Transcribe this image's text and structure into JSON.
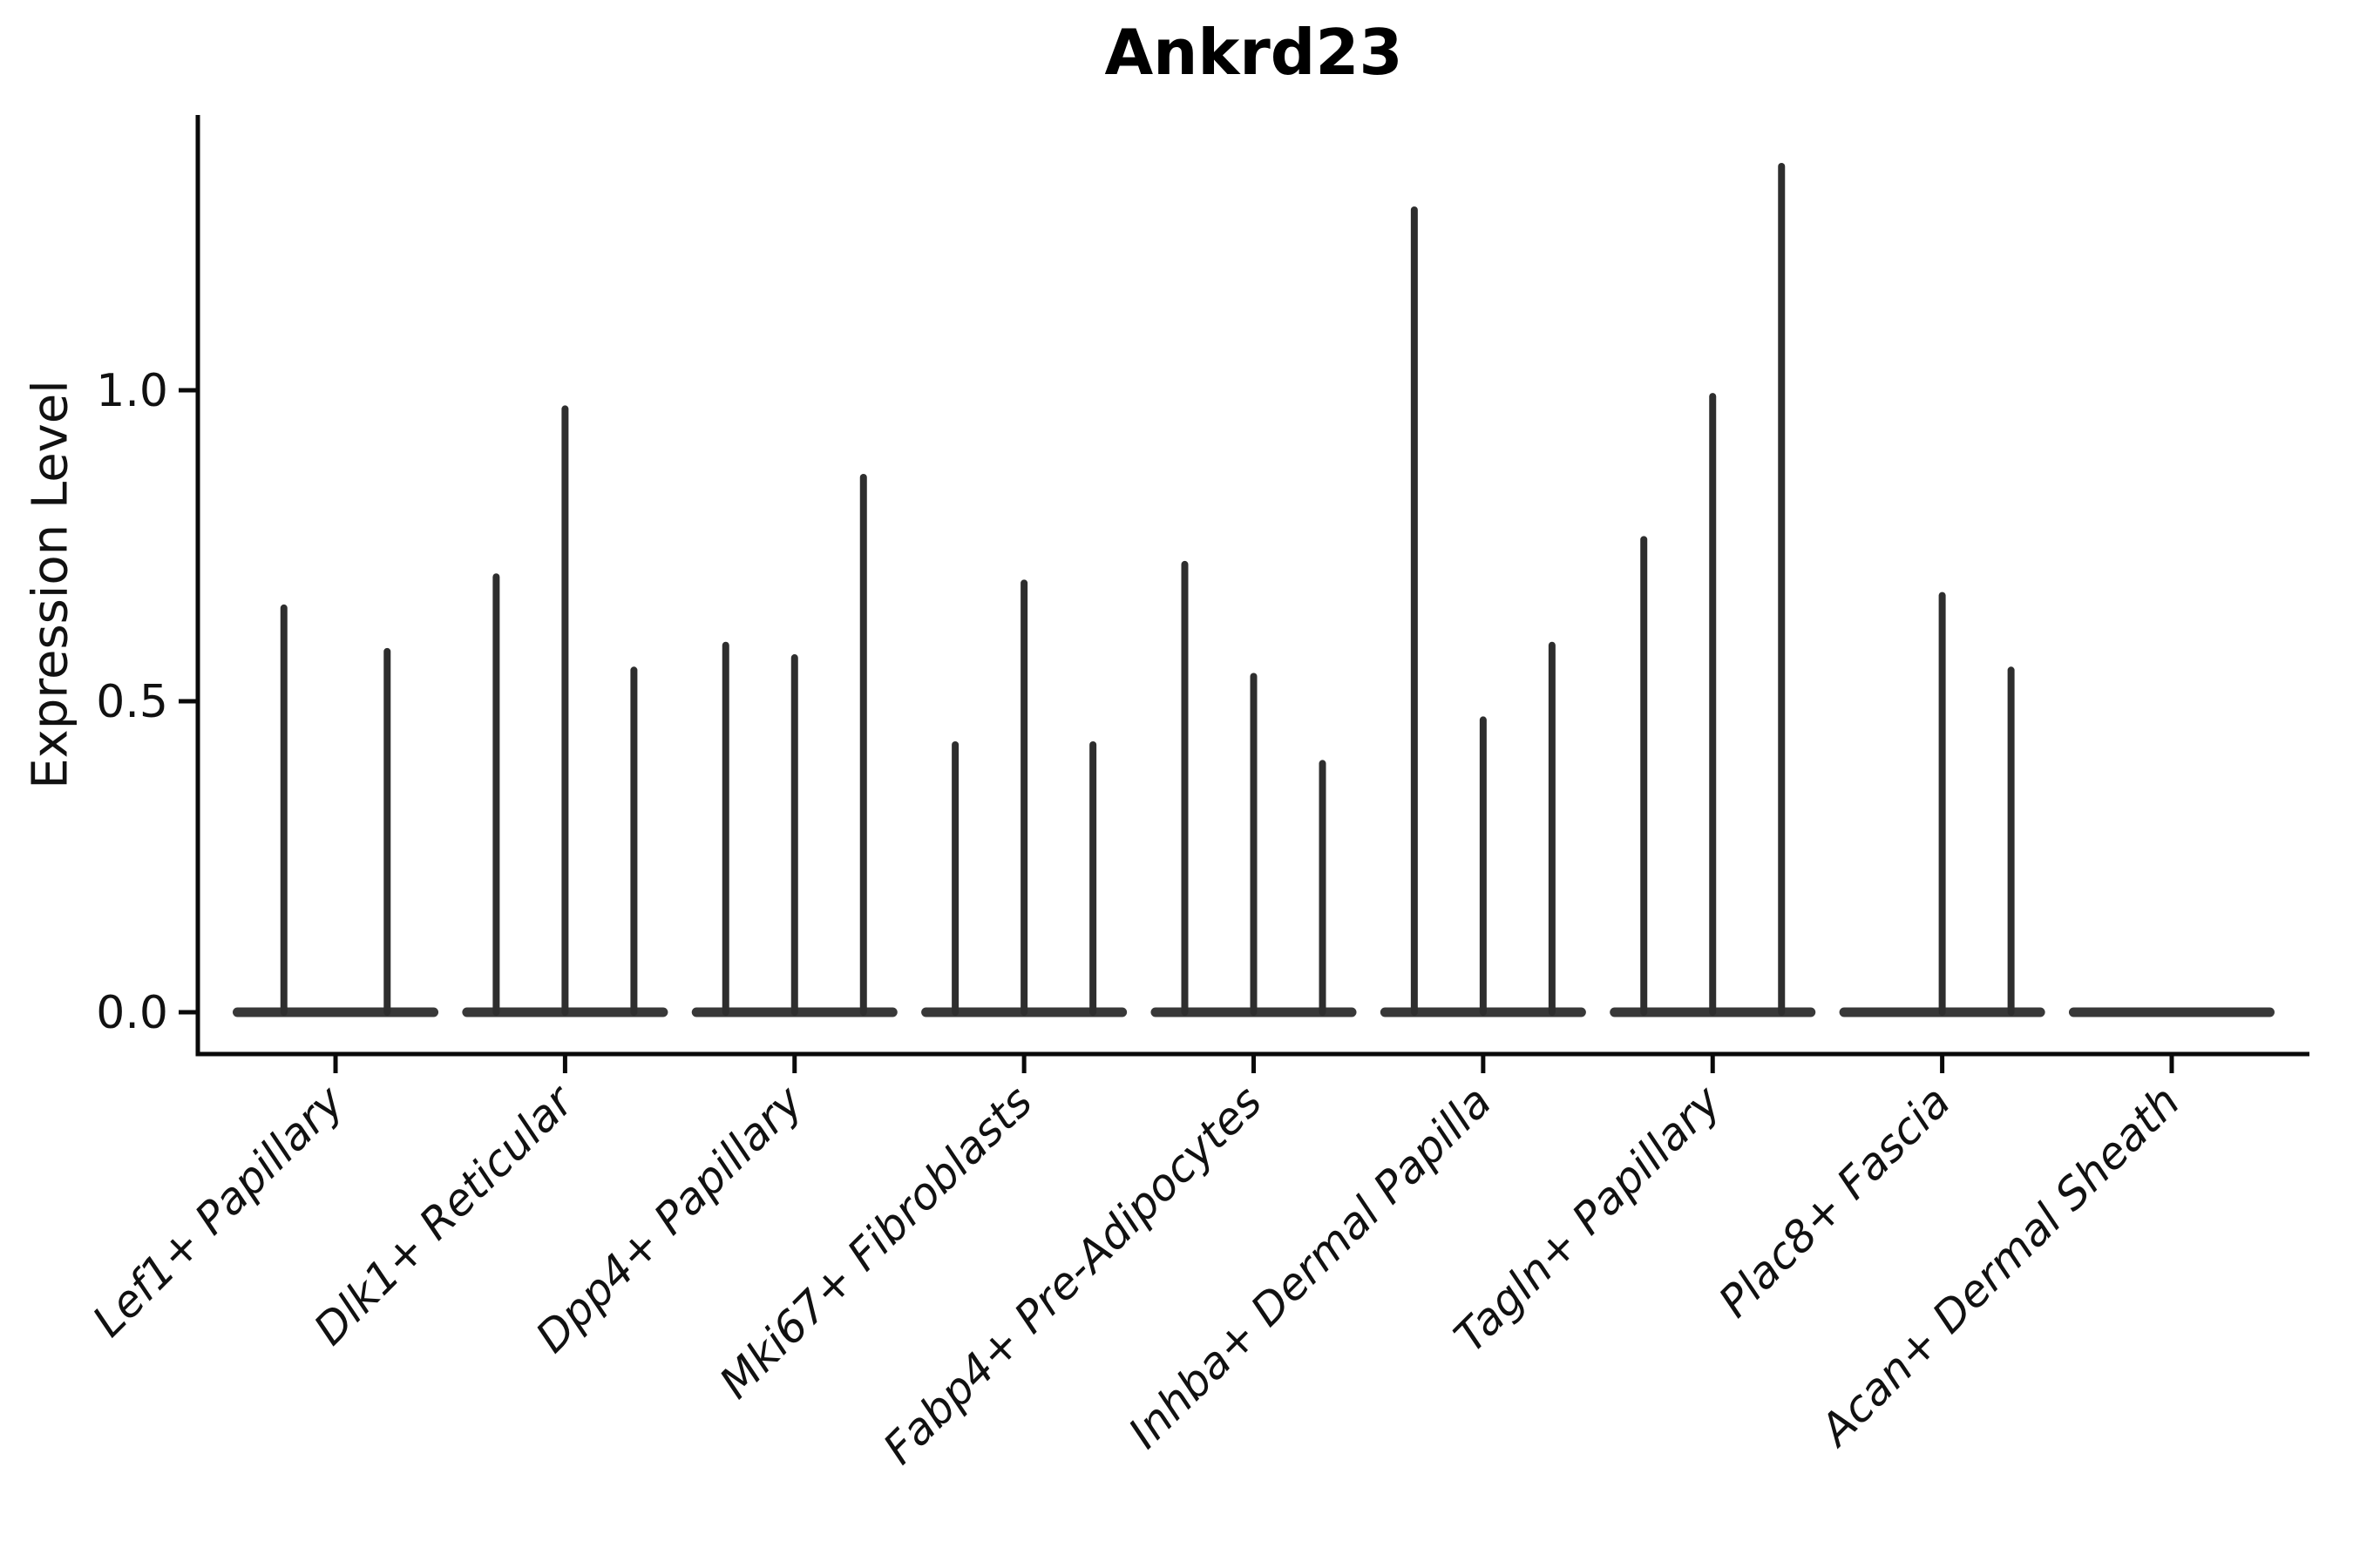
{
  "chart_data": {
    "type": "violin",
    "title": "Ankrd23",
    "xlabel": "",
    "ylabel": "Expression Level",
    "ylim": [
      -0.07,
      1.44
    ],
    "yticks": [
      {
        "label": "0.0",
        "value": 0.0
      },
      {
        "label": "0.5",
        "value": 0.5
      },
      {
        "label": "1.0",
        "value": 1.0
      }
    ],
    "xtick_rotation": 45,
    "grid": false,
    "legend": "none",
    "categories": [
      "Lef1+ Papillary",
      "Dlk1+ Reticular",
      "Dpp4+ Papillary",
      "Mki67+ Fibroblasts",
      "Fabp4+ Pre-Adipocytes",
      "Inhba+ Dermal Papilla",
      "Tagln+ Papillary",
      "Plac8+ Fascia",
      "Acan+ Dermal Sheath"
    ],
    "violins": [
      {
        "category": "Lef1+ Papillary",
        "spike_maxima": [
          0.65,
          0.58
        ]
      },
      {
        "category": "Dlk1+ Reticular",
        "spike_maxima": [
          0.7,
          0.97,
          0.55
        ]
      },
      {
        "category": "Dpp4+ Papillary",
        "spike_maxima": [
          0.59,
          0.57,
          0.86
        ]
      },
      {
        "category": "Mki67+ Fibroblasts",
        "spike_maxima": [
          0.43,
          0.69,
          0.43
        ]
      },
      {
        "category": "Fabp4+ Pre-Adipocytes",
        "spike_maxima": [
          0.72,
          0.54,
          0.4
        ]
      },
      {
        "category": "Inhba+ Dermal Papilla",
        "spike_maxima": [
          1.29,
          0.47,
          0.59
        ]
      },
      {
        "category": "Tagln+ Papillary",
        "spike_maxima": [
          0.76,
          0.99,
          1.36
        ]
      },
      {
        "category": "Plac8+ Fascia",
        "spike_maxima": [
          0.0,
          0.67,
          0.55
        ]
      },
      {
        "category": "Acan+ Dermal Sheath",
        "spike_maxima": [
          0.0,
          0.0,
          0.0
        ]
      }
    ],
    "colors": {
      "spike": "#2e2e2e",
      "baseline": "#383838",
      "spine": "#0a0a0a",
      "text": "#111111",
      "background": "#ffffff"
    }
  }
}
